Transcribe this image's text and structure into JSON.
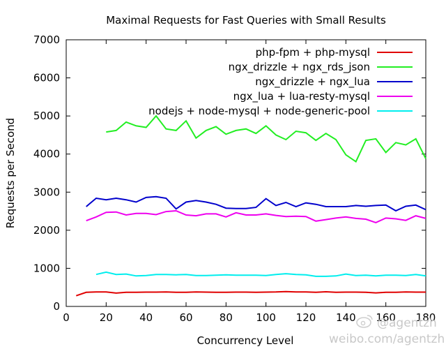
{
  "chart_data": {
    "type": "line",
    "title": "Maximal Requests for Fast Queries with Small Results",
    "xlabel": "Concurrency Level",
    "ylabel": "Requests per Second",
    "xlim": [
      0,
      180
    ],
    "ylim": [
      0,
      7000
    ],
    "xticks": [
      "0",
      "20",
      "40",
      "60",
      "80",
      "100",
      "120",
      "140",
      "160",
      "180"
    ],
    "yticks": [
      "0",
      "1000",
      "2000",
      "3000",
      "4000",
      "5000",
      "6000",
      "7000"
    ],
    "legend_position": "top-right",
    "grid": false,
    "series": [
      {
        "name": "php-fpm + php-mysql",
        "color": "#e00000",
        "x": [
          5,
          10,
          15,
          20,
          25,
          30,
          35,
          40,
          45,
          50,
          55,
          60,
          65,
          70,
          75,
          80,
          85,
          90,
          95,
          100,
          105,
          110,
          115,
          120,
          125,
          130,
          135,
          140,
          145,
          150,
          155,
          160,
          165,
          170,
          175,
          180
        ],
        "y": [
          280,
          370,
          380,
          380,
          350,
          370,
          370,
          375,
          375,
          380,
          370,
          370,
          380,
          375,
          370,
          370,
          375,
          375,
          370,
          375,
          380,
          390,
          380,
          380,
          370,
          385,
          370,
          375,
          375,
          370,
          355,
          370,
          370,
          380,
          375,
          375
        ]
      },
      {
        "name": "ngx_drizzle + ngx_rds_json",
        "color": "#22ee22",
        "x": [
          20,
          25,
          30,
          35,
          40,
          45,
          50,
          55,
          60,
          65,
          70,
          75,
          80,
          85,
          90,
          95,
          100,
          105,
          110,
          115,
          120,
          125,
          130,
          135,
          140,
          145,
          150,
          155,
          160,
          165,
          170,
          175,
          180
        ],
        "y": [
          4580,
          4620,
          4840,
          4740,
          4700,
          5000,
          4660,
          4620,
          4870,
          4420,
          4620,
          4720,
          4520,
          4620,
          4660,
          4540,
          4740,
          4500,
          4380,
          4600,
          4560,
          4360,
          4540,
          4380,
          3980,
          3800,
          4360,
          4400,
          4040,
          4300,
          4240,
          4400,
          3880
        ]
      },
      {
        "name": "ngx_drizzle + ngx_lua",
        "color": "#0000cc",
        "x": [
          10,
          15,
          20,
          25,
          30,
          35,
          40,
          45,
          50,
          55,
          60,
          65,
          70,
          75,
          80,
          85,
          90,
          95,
          100,
          105,
          110,
          115,
          120,
          125,
          130,
          135,
          140,
          145,
          150,
          155,
          160,
          165,
          170,
          175,
          180
        ],
        "y": [
          2620,
          2840,
          2800,
          2840,
          2800,
          2740,
          2860,
          2880,
          2840,
          2560,
          2740,
          2780,
          2740,
          2680,
          2580,
          2570,
          2570,
          2600,
          2830,
          2650,
          2730,
          2620,
          2720,
          2680,
          2620,
          2620,
          2620,
          2650,
          2630,
          2650,
          2660,
          2510,
          2630,
          2660,
          2540
        ]
      },
      {
        "name": "ngx_lua + lua-resty-mysql",
        "color": "#ee00ee",
        "x": [
          10,
          15,
          20,
          25,
          30,
          35,
          40,
          45,
          50,
          55,
          60,
          65,
          70,
          75,
          80,
          85,
          90,
          95,
          100,
          105,
          110,
          115,
          120,
          125,
          130,
          135,
          140,
          145,
          150,
          155,
          160,
          165,
          170,
          175,
          180
        ],
        "y": [
          2250,
          2350,
          2470,
          2480,
          2400,
          2440,
          2440,
          2410,
          2490,
          2510,
          2400,
          2380,
          2430,
          2430,
          2350,
          2460,
          2400,
          2400,
          2430,
          2390,
          2360,
          2370,
          2360,
          2240,
          2280,
          2320,
          2350,
          2310,
          2290,
          2200,
          2320,
          2300,
          2260,
          2380,
          2310
        ]
      },
      {
        "name": "nodejs + node-mysql + node-generic-pool",
        "color": "#00eeee",
        "x": [
          15,
          20,
          25,
          30,
          35,
          40,
          45,
          50,
          55,
          60,
          65,
          70,
          75,
          80,
          85,
          90,
          95,
          100,
          105,
          110,
          115,
          120,
          125,
          130,
          135,
          140,
          145,
          150,
          155,
          160,
          165,
          170,
          175,
          180
        ],
        "y": [
          840,
          900,
          840,
          850,
          800,
          810,
          840,
          840,
          830,
          840,
          810,
          810,
          820,
          830,
          820,
          820,
          820,
          810,
          840,
          860,
          840,
          830,
          790,
          790,
          800,
          850,
          810,
          820,
          800,
          820,
          820,
          810,
          840,
          800
        ]
      }
    ]
  },
  "watermark": {
    "handle": "@agentzh",
    "url": "weibo.com/agentzh"
  }
}
